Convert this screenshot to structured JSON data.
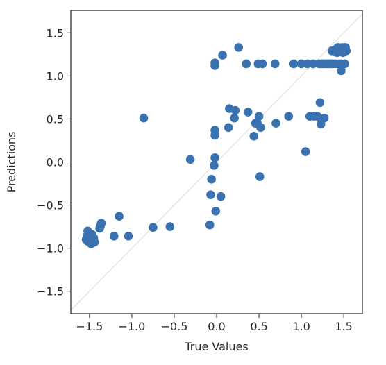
{
  "chart_data": {
    "type": "scatter",
    "title": "",
    "xlabel": "True Values",
    "ylabel": "Predictions",
    "xlim": [
      -1.72,
      1.72
    ],
    "ylim": [
      -1.76,
      1.76
    ],
    "xticks": [
      -1.5,
      -1.0,
      -0.5,
      0.0,
      0.5,
      1.0,
      1.5
    ],
    "yticks": [
      -1.5,
      -1.0,
      -0.5,
      0.0,
      0.5,
      1.0,
      1.5
    ],
    "xtick_labels": [
      "−1.5",
      "−1.0",
      "−0.5",
      "0.0",
      "0.5",
      "1.0",
      "1.5"
    ],
    "ytick_labels": [
      "−1.5",
      "−1.0",
      "−0.5",
      "0.0",
      "0.5",
      "1.0",
      "1.5"
    ],
    "grid": false,
    "diagonal_reference_line": true,
    "colors": {
      "points": "#3a72b0",
      "diagonal": "#e0e0e0",
      "axes": "#262626"
    },
    "series": [
      {
        "points": [
          [
            -1.52,
            -0.8
          ],
          [
            -1.53,
            -0.86
          ],
          [
            -1.54,
            -0.9
          ],
          [
            -1.52,
            -0.92
          ],
          [
            -1.5,
            -0.93
          ],
          [
            -1.48,
            -0.95
          ],
          [
            -1.46,
            -0.91
          ],
          [
            -1.45,
            -0.88
          ],
          [
            -1.47,
            -0.84
          ],
          [
            -1.44,
            -0.93
          ],
          [
            -1.38,
            -0.77
          ],
          [
            -1.37,
            -0.74
          ],
          [
            -1.36,
            -0.71
          ],
          [
            -1.21,
            -0.86
          ],
          [
            -1.15,
            -0.63
          ],
          [
            -1.04,
            -0.86
          ],
          [
            -0.86,
            0.51
          ],
          [
            -0.75,
            -0.76
          ],
          [
            -0.55,
            -0.75
          ],
          [
            -0.31,
            0.03
          ],
          [
            -0.08,
            -0.73
          ],
          [
            -0.07,
            -0.38
          ],
          [
            -0.06,
            -0.2
          ],
          [
            -0.03,
            -0.04
          ],
          [
            -0.02,
            0.05
          ],
          [
            -0.02,
            0.31
          ],
          [
            -0.02,
            0.37
          ],
          [
            -0.02,
            1.12
          ],
          [
            -0.02,
            1.15
          ],
          [
            -0.01,
            -0.57
          ],
          [
            0.05,
            -0.4
          ],
          [
            0.07,
            1.24
          ],
          [
            0.14,
            0.4
          ],
          [
            0.15,
            0.62
          ],
          [
            0.21,
            0.51
          ],
          [
            0.22,
            0.6
          ],
          [
            0.26,
            1.33
          ],
          [
            0.35,
            1.14
          ],
          [
            0.37,
            0.58
          ],
          [
            0.44,
            0.3
          ],
          [
            0.46,
            0.45
          ],
          [
            0.48,
            0.45
          ],
          [
            0.49,
            1.14
          ],
          [
            0.5,
            0.53
          ],
          [
            0.51,
            -0.17
          ],
          [
            0.52,
            0.4
          ],
          [
            0.54,
            1.14
          ],
          [
            0.69,
            1.14
          ],
          [
            0.7,
            0.45
          ],
          [
            0.85,
            0.53
          ],
          [
            0.91,
            1.14
          ],
          [
            1.0,
            1.14
          ],
          [
            1.05,
            0.12
          ],
          [
            1.07,
            1.14
          ],
          [
            1.1,
            0.53
          ],
          [
            1.14,
            1.14
          ],
          [
            1.15,
            0.53
          ],
          [
            1.19,
            0.53
          ],
          [
            1.21,
            1.14
          ],
          [
            1.22,
            0.69
          ],
          [
            1.23,
            0.44
          ],
          [
            1.24,
            1.14
          ],
          [
            1.26,
            1.14
          ],
          [
            1.27,
            0.51
          ],
          [
            1.29,
            1.14
          ],
          [
            1.31,
            1.14
          ],
          [
            1.33,
            1.14
          ],
          [
            1.35,
            1.14
          ],
          [
            1.36,
            1.29
          ],
          [
            1.37,
            1.14
          ],
          [
            1.39,
            1.29
          ],
          [
            1.4,
            1.14
          ],
          [
            1.41,
            1.31
          ],
          [
            1.42,
            1.27
          ],
          [
            1.43,
            1.33
          ],
          [
            1.44,
            1.14
          ],
          [
            1.45,
            1.29
          ],
          [
            1.46,
            1.32
          ],
          [
            1.47,
            1.06
          ],
          [
            1.47,
            1.14
          ],
          [
            1.48,
            1.33
          ],
          [
            1.49,
            1.27
          ],
          [
            1.5,
            1.31
          ],
          [
            1.51,
            1.14
          ],
          [
            1.52,
            1.33
          ],
          [
            1.53,
            1.29
          ]
        ]
      }
    ]
  }
}
